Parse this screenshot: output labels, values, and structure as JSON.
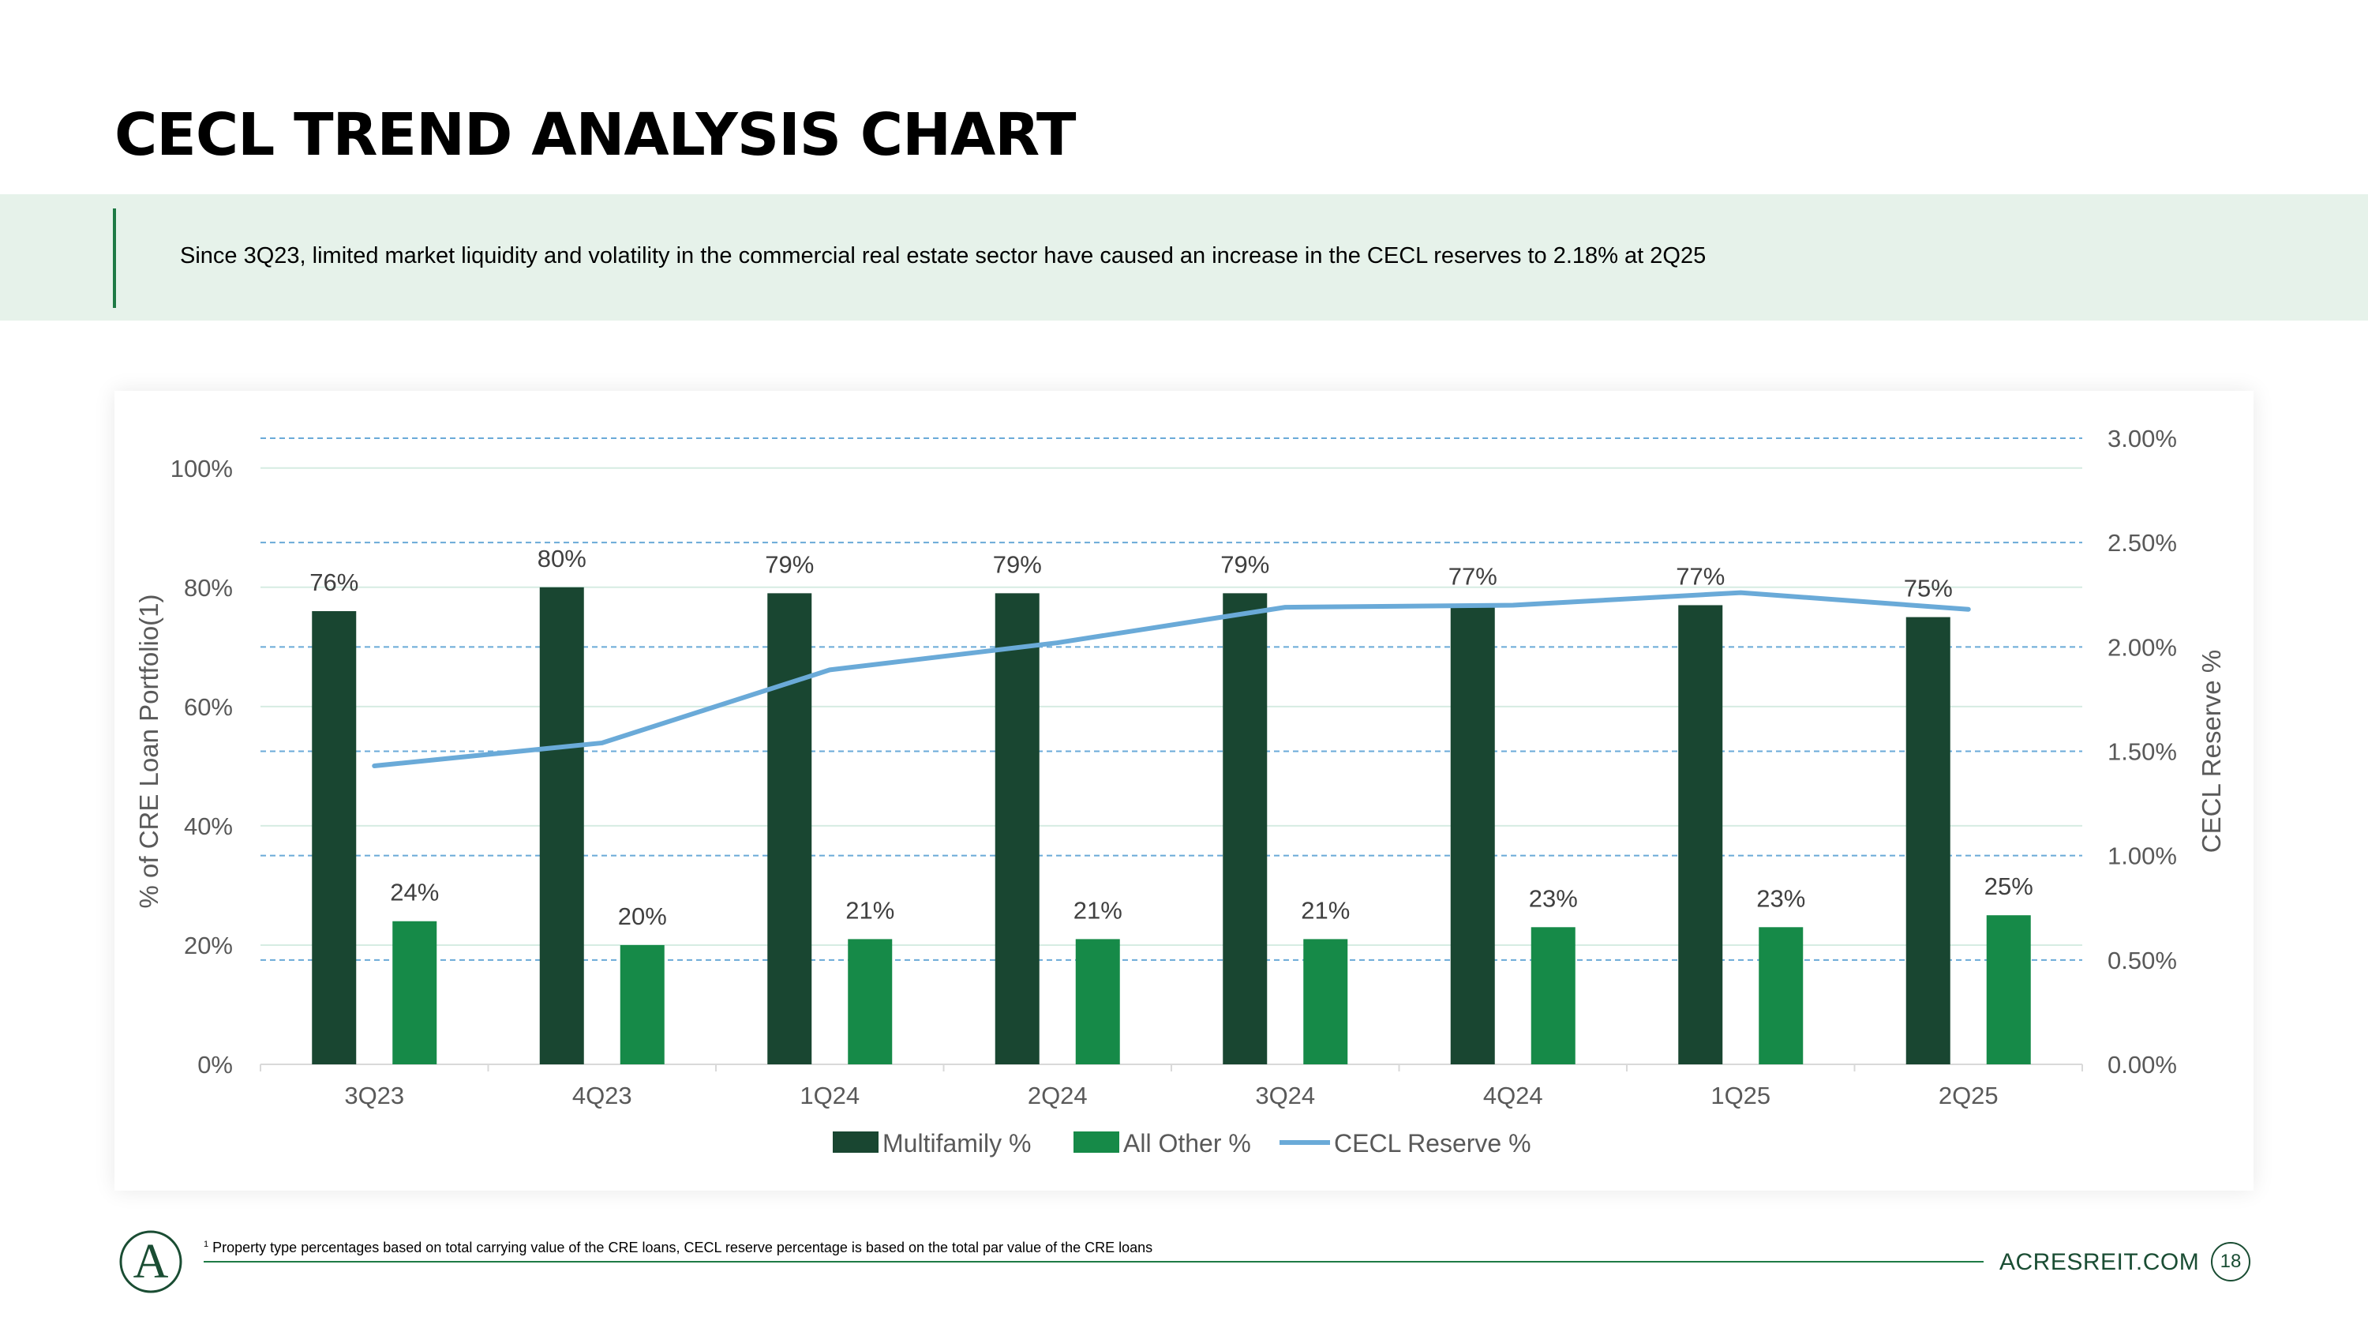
{
  "page": {
    "title": "CECL TREND ANALYSIS CHART",
    "banner_text": "Since 3Q23, limited market liquidity and volatility in the commercial real estate sector have caused an increase in the CECL reserves to 2.18% at 2Q25",
    "footnote_marker": "1",
    "footnote": "Property type percentages based on total carrying value of the CRE loans, CECL reserve percentage is based on the total par value of the CRE loans",
    "website": "ACRESREIT.COM",
    "page_number": "18",
    "logo_letter": "A"
  },
  "colors": {
    "multifamily": "#194631",
    "all_other": "#168a48",
    "cecl_line": "#6aaad8",
    "accent": "#1e7a45"
  },
  "chart_data": {
    "type": "bar",
    "categories": [
      "3Q23",
      "4Q23",
      "1Q24",
      "2Q24",
      "3Q24",
      "4Q24",
      "1Q25",
      "2Q25"
    ],
    "series": [
      {
        "name": "Multifamily %",
        "type": "bar",
        "axis": "left",
        "values": [
          76,
          80,
          79,
          79,
          79,
          77,
          77,
          75
        ],
        "labels": [
          "76%",
          "80%",
          "79%",
          "79%",
          "79%",
          "77%",
          "77%",
          "75%"
        ]
      },
      {
        "name": "All Other %",
        "type": "bar",
        "axis": "left",
        "values": [
          24,
          20,
          21,
          21,
          21,
          23,
          23,
          25
        ],
        "labels": [
          "24%",
          "20%",
          "21%",
          "21%",
          "21%",
          "23%",
          "23%",
          "25%"
        ]
      },
      {
        "name": "CECL Reserve %",
        "type": "line",
        "axis": "right",
        "values": [
          1.43,
          1.54,
          1.89,
          2.02,
          2.19,
          2.2,
          2.26,
          2.18
        ]
      }
    ],
    "ylabel": "% of CRE Loan Portfolio(1)",
    "y2label": "CECL Reserve %",
    "ylim": [
      0,
      105
    ],
    "yticks": [
      0,
      20,
      40,
      60,
      80,
      100
    ],
    "ytick_labels": [
      "0%",
      "20%",
      "40%",
      "60%",
      "80%",
      "100%"
    ],
    "y2lim": [
      0,
      3.0
    ],
    "y2ticks": [
      0,
      0.5,
      1.0,
      1.5,
      2.0,
      2.5,
      3.0
    ],
    "y2tick_labels": [
      "0.00%",
      "0.50%",
      "1.00%",
      "1.50%",
      "2.00%",
      "2.50%",
      "3.00%"
    ],
    "legend": "bottom-center"
  }
}
